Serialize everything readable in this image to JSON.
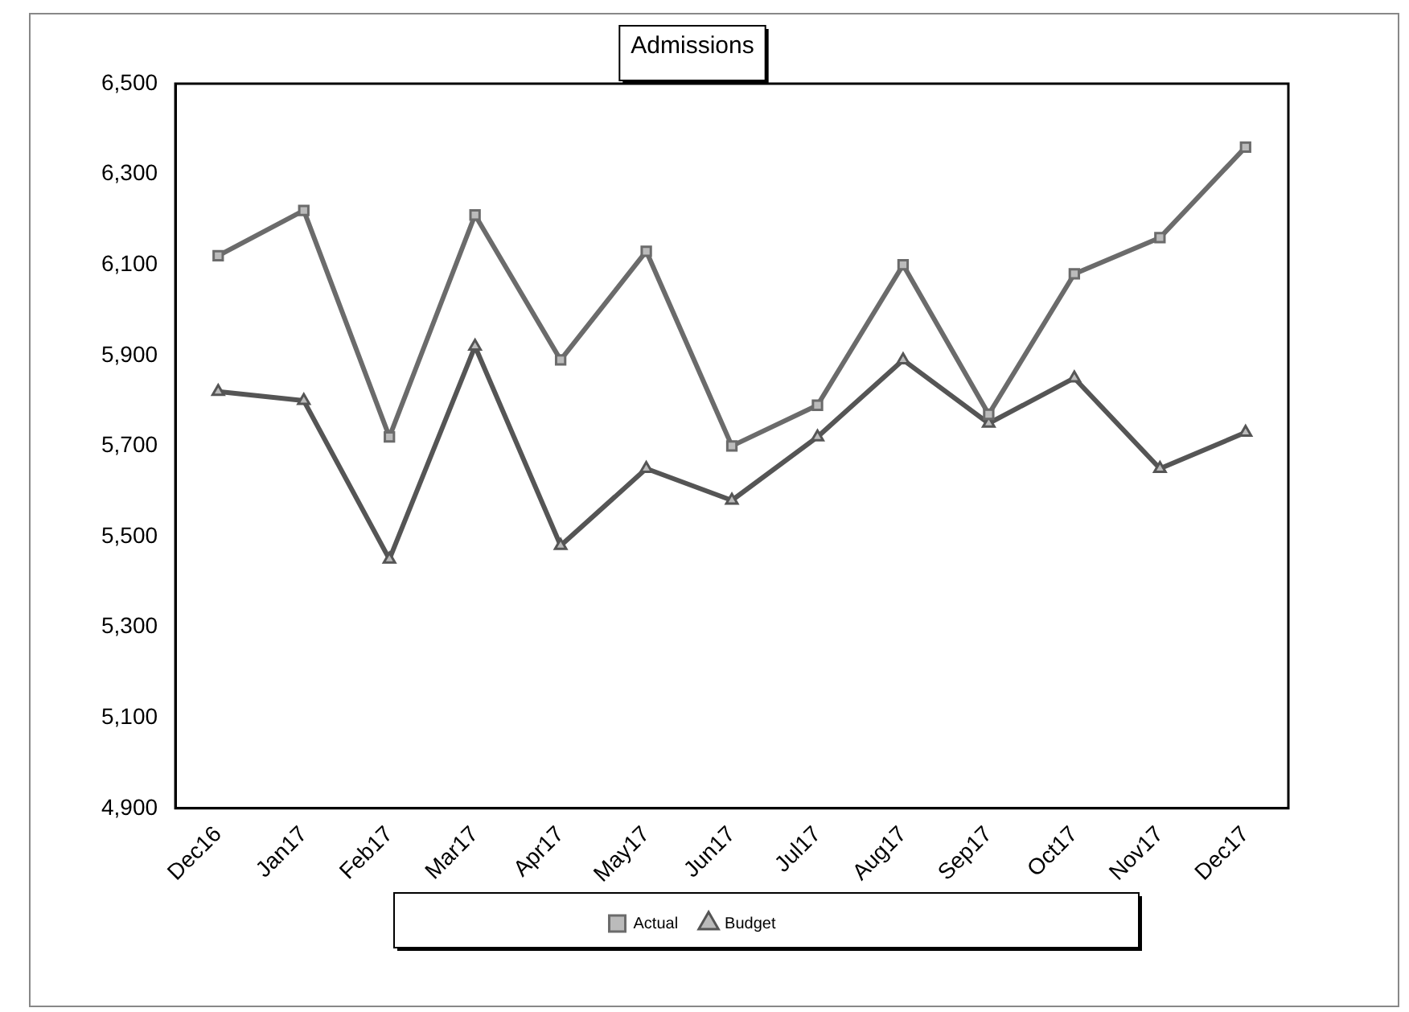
{
  "chart_data": {
    "type": "line",
    "title": "Admissions",
    "categories": [
      "Dec16",
      "Jan17",
      "Feb17",
      "Mar17",
      "Apr17",
      "May17",
      "Jun17",
      "Jul17",
      "Aug17",
      "Sep17",
      "Oct17",
      "Nov17",
      "Dec17"
    ],
    "series": [
      {
        "name": "Actual",
        "color": "#6b6b6b",
        "marker": "square",
        "values": [
          6120,
          6220,
          5720,
          6210,
          5890,
          6130,
          5700,
          5790,
          6100,
          5770,
          6080,
          6160,
          6360
        ]
      },
      {
        "name": "Budget",
        "color": "#555555",
        "marker": "triangle",
        "values": [
          5820,
          5800,
          5450,
          5920,
          5480,
          5650,
          5580,
          5720,
          5890,
          5750,
          5850,
          5650,
          5730
        ]
      }
    ],
    "ylim": [
      4900,
      6500
    ],
    "yticks": [
      {
        "value": 4900,
        "label": "4,900"
      },
      {
        "value": 5100,
        "label": "5,100"
      },
      {
        "value": 5300,
        "label": "5,300"
      },
      {
        "value": 5500,
        "label": "5,500"
      },
      {
        "value": 5700,
        "label": "5,700"
      },
      {
        "value": 5900,
        "label": "5,900"
      },
      {
        "value": 6100,
        "label": "6,100"
      },
      {
        "value": 6300,
        "label": "6,300"
      },
      {
        "value": 6500,
        "label": "6,500"
      }
    ],
    "grid": false,
    "legend": "bottom",
    "line_style": "solid"
  }
}
